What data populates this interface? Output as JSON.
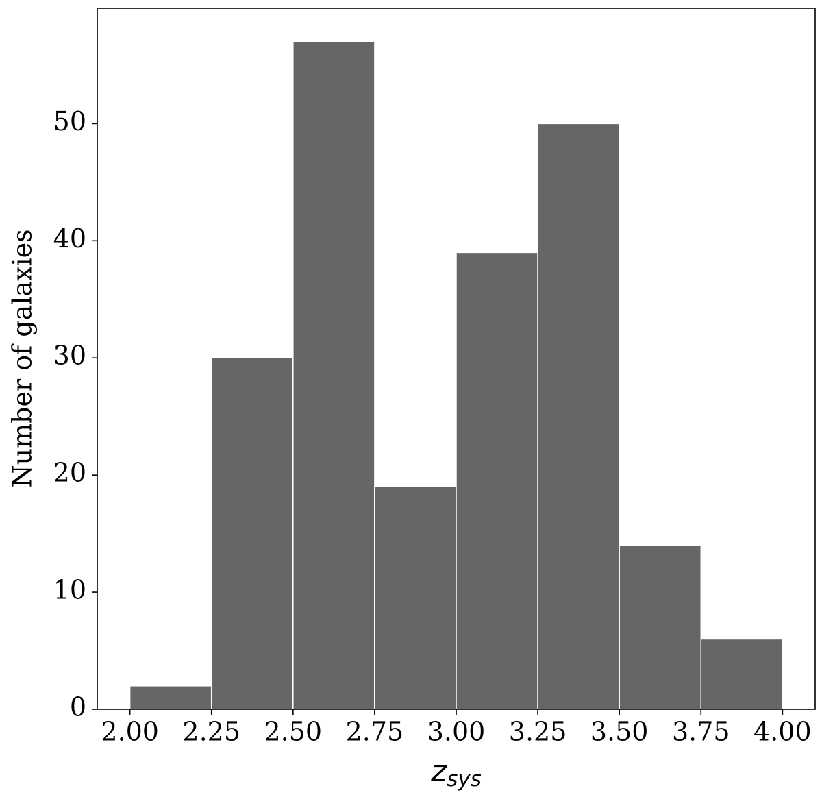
{
  "chart_data": {
    "type": "histogram",
    "bins": [
      2.0,
      2.25,
      2.5,
      2.75,
      3.0,
      3.25,
      3.5,
      3.75,
      4.0
    ],
    "values": [
      2,
      30,
      57,
      19,
      39,
      50,
      14,
      6
    ],
    "color": "#666666",
    "edgecolor": "#ffffff",
    "xlabel": "z",
    "xlabel_subscript": "sys",
    "ylabel": "Number of galaxies",
    "xlim": [
      1.9,
      4.1
    ],
    "ylim": [
      0,
      59.85
    ],
    "xticks": [
      {
        "value": 2.0,
        "label": "2.00"
      },
      {
        "value": 2.25,
        "label": "2.25"
      },
      {
        "value": 2.5,
        "label": "2.50"
      },
      {
        "value": 2.75,
        "label": "2.75"
      },
      {
        "value": 3.0,
        "label": "3.00"
      },
      {
        "value": 3.25,
        "label": "3.25"
      },
      {
        "value": 3.5,
        "label": "3.50"
      },
      {
        "value": 3.75,
        "label": "3.75"
      },
      {
        "value": 4.0,
        "label": "4.00"
      }
    ],
    "yticks": [
      0,
      10,
      20,
      30,
      40,
      50
    ],
    "grid": false
  }
}
